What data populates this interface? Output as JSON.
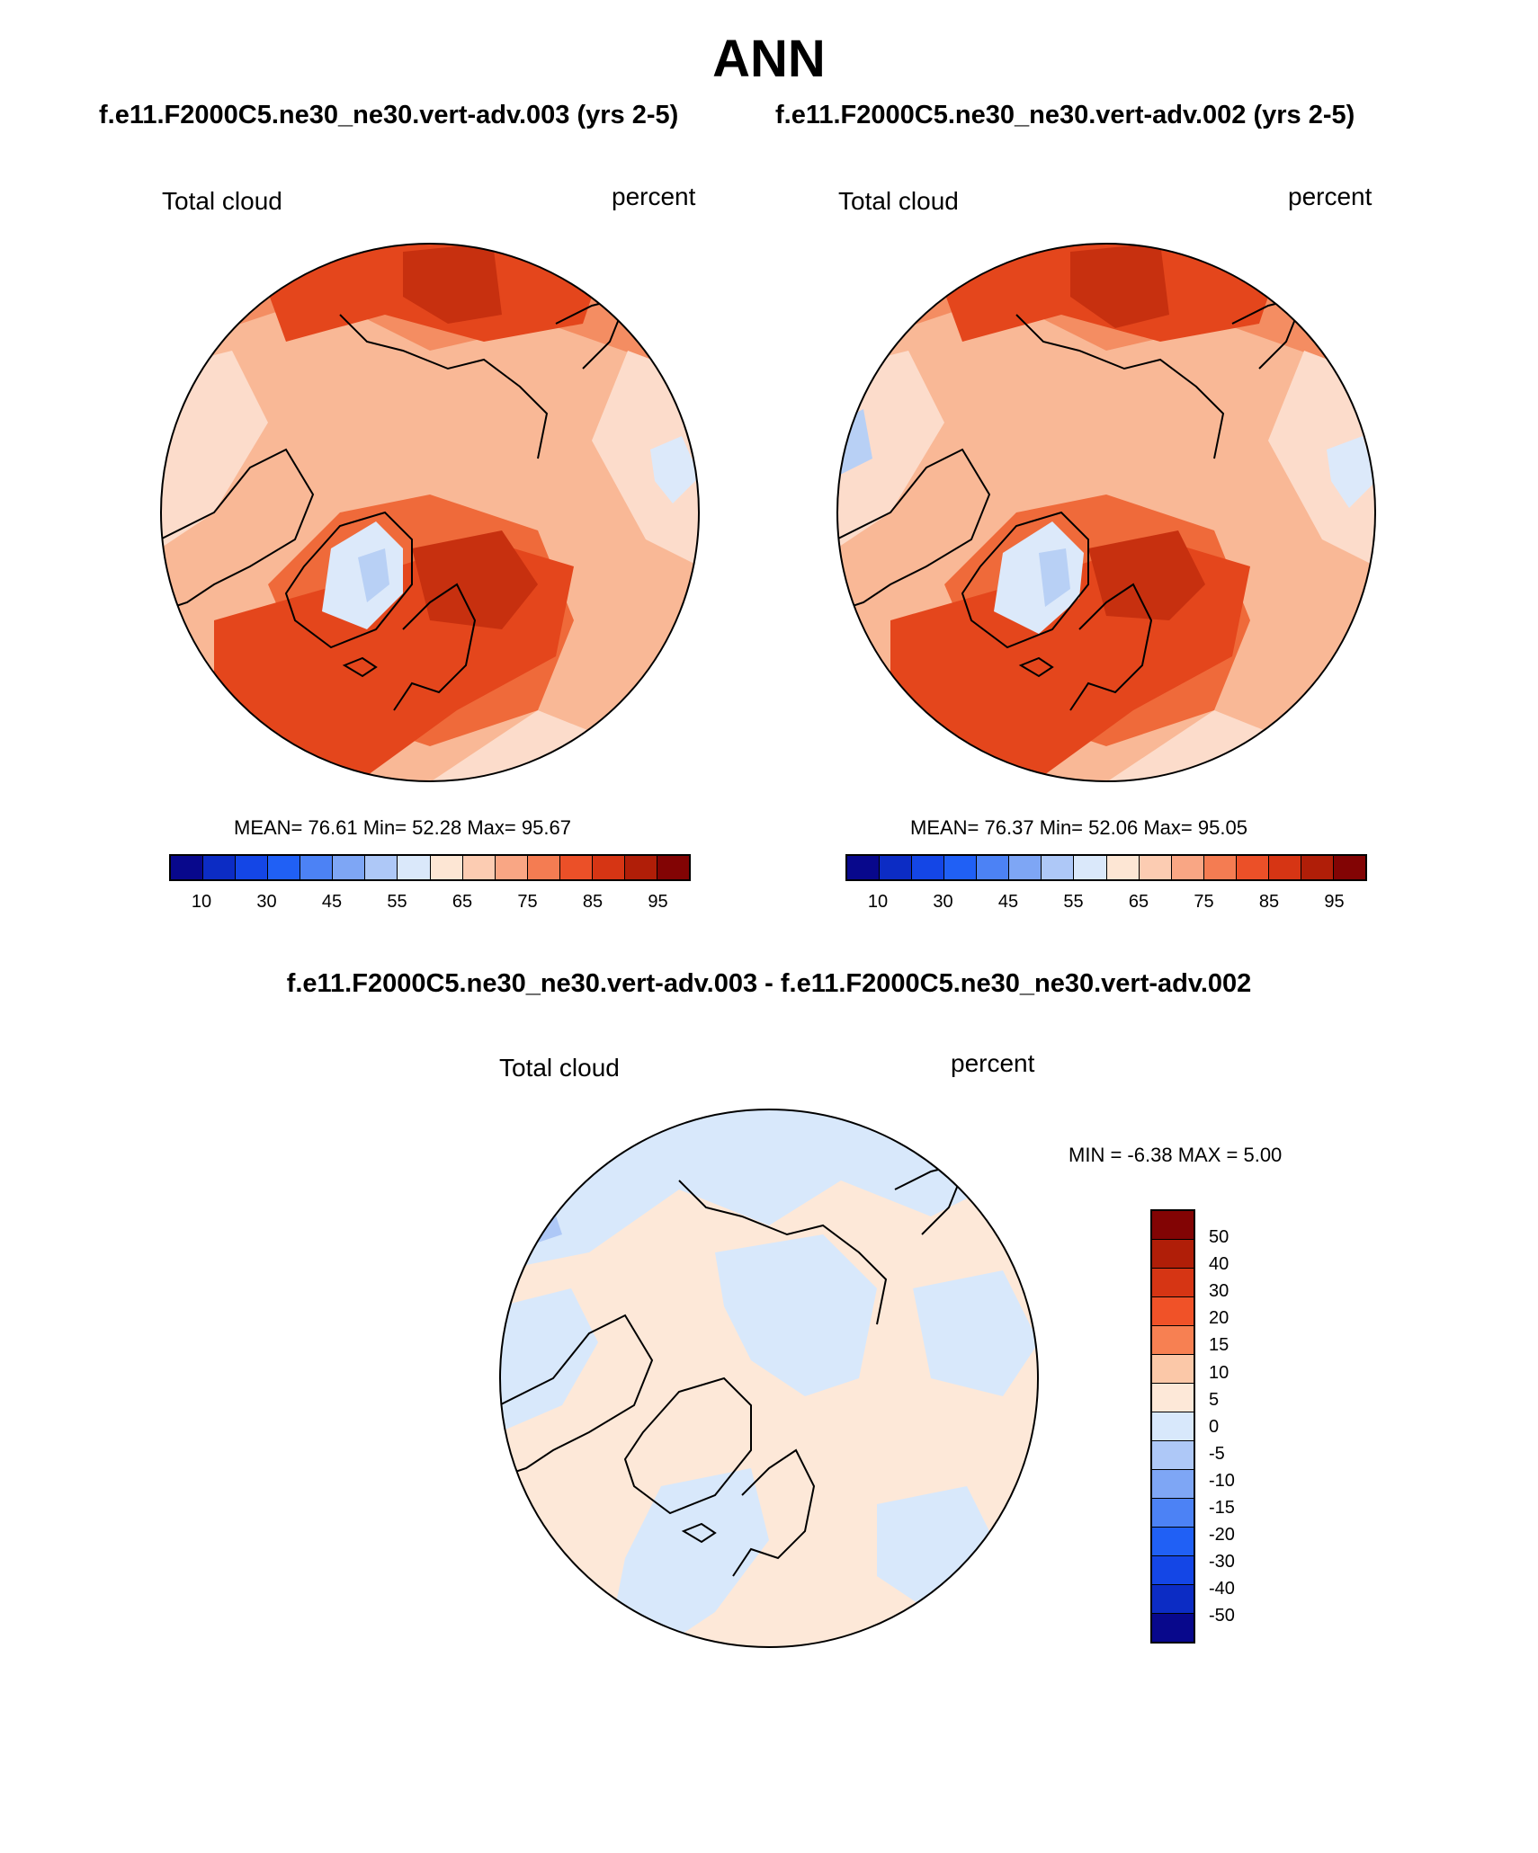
{
  "figure": {
    "title": "ANN",
    "case1_title": "f.e11.F2000C5.ne30_ne30.vert-adv.003 (yrs 2-5)",
    "case2_title": "f.e11.F2000C5.ne30_ne30.vert-adv.002 (yrs 2-5)",
    "diff_title": "f.e11.F2000C5.ne30_ne30.vert-adv.003 - f.e11.F2000C5.ne30_ne30.vert-adv.002"
  },
  "panels": {
    "p1": {
      "variable": "Total cloud",
      "units": "percent",
      "stats": {
        "mean_label": "MEAN=",
        "mean": "76.61",
        "min_label": "Min=",
        "min": "52.28",
        "max_label": "Max=",
        "max": "95.67"
      }
    },
    "p2": {
      "variable": "Total cloud",
      "units": "percent",
      "stats": {
        "mean_label": "MEAN=",
        "mean": "76.37",
        "min_label": "Min=",
        "min": "52.06",
        "max_label": "Max=",
        "max": "95.05"
      }
    },
    "diff": {
      "variable": "Total cloud",
      "units": "percent",
      "stats": {
        "min_label": "MIN =",
        "min": "-6.38",
        "max_label": "MAX =",
        "max": "5.00"
      }
    }
  },
  "colorbars": {
    "abs": {
      "colors": [
        "#08088c",
        "#0c2cc4",
        "#1446e6",
        "#2060f5",
        "#4c82f5",
        "#7ea6f5",
        "#aec8f7",
        "#dae8fa",
        "#fde6d4",
        "#fcccb2",
        "#f9a684",
        "#f47c52",
        "#eb5028",
        "#d63514",
        "#b01e08",
        "#820404"
      ],
      "ticks": [
        "10",
        "30",
        "45",
        "55",
        "65",
        "75",
        "85",
        "95"
      ]
    },
    "diff": {
      "colors": [
        "#820404",
        "#b01e08",
        "#d63514",
        "#f05228",
        "#f78052",
        "#fbc8a8",
        "#fde8d8",
        "#d8e8fb",
        "#aec8f7",
        "#7ea6f5",
        "#4c82f5",
        "#2060f5",
        "#1446e6",
        "#0c2cc4",
        "#08088c"
      ],
      "ticks": [
        "50",
        "40",
        "30",
        "20",
        "15",
        "10",
        "5",
        "0",
        "-5",
        "-10",
        "-15",
        "-20",
        "-30",
        "-40",
        "-50"
      ]
    }
  },
  "map_fields": {
    "abs_colors": {
      "pale": "#fcdccb",
      "light": "#f9b896",
      "mid": "#f48d62",
      "strong": "#ef6a3a",
      "deep": "#e4461c",
      "darker": "#c7300f",
      "darkest": "#9e1a06",
      "ice": "#dce9fa",
      "ice2": "#b8d0f5"
    },
    "diff_colors": {
      "pos": "#fde8d8",
      "neg": "#d8e8fb",
      "neg2": "#aec8f7"
    }
  }
}
